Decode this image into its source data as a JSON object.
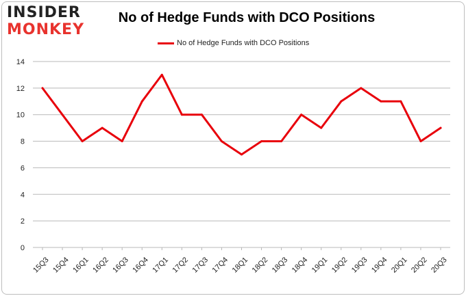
{
  "logo": {
    "line1": "INSIDER",
    "line2": "MONKEY"
  },
  "chart_data": {
    "type": "line",
    "title": "No of Hedge Funds with DCO Positions",
    "xlabel": "",
    "ylabel": "",
    "categories": [
      "15Q3",
      "15Q4",
      "16Q1",
      "16Q2",
      "16Q3",
      "16Q4",
      "17Q1",
      "17Q2",
      "17Q3",
      "17Q4",
      "18Q1",
      "18Q2",
      "18Q3",
      "18Q4",
      "19Q1",
      "19Q2",
      "19Q3",
      "19Q4",
      "20Q1",
      "20Q2",
      "20Q3"
    ],
    "series": [
      {
        "name": "No of Hedge Funds with DCO Positions",
        "color": "#e8000b",
        "values": [
          12,
          10,
          8,
          9,
          8,
          11,
          13,
          10,
          10,
          8,
          7,
          8,
          8,
          10,
          9,
          11,
          12,
          11,
          11,
          8,
          9
        ]
      }
    ],
    "ylim": [
      0,
      14
    ],
    "yticks": [
      0,
      2,
      4,
      6,
      8,
      10,
      12,
      14
    ],
    "grid": true,
    "legend_position": "top"
  }
}
